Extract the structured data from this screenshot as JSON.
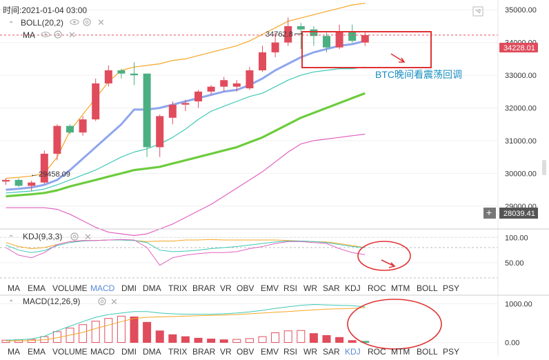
{
  "header": {
    "time_label": "时间:2021-01-04 03:00",
    "boll_label": "BOLL(20,2)",
    "ma_label": "MA",
    "kdj_label": "KDJ(9,3,3)",
    "macd_label": "MACD(12,26,9)"
  },
  "indicator_tabs_kdj": {
    "items": [
      "MA",
      "EMA",
      "VOLUME",
      "MACD",
      "DMI",
      "DMA",
      "TRIX",
      "BRAR",
      "VR",
      "OBV",
      "EMV",
      "RSI",
      "WR",
      "SAR",
      "KDJ",
      "ROC",
      "MTM",
      "BOLL",
      "PSY"
    ],
    "active": "MACD"
  },
  "indicator_tabs_macd": {
    "items": [
      "MA",
      "EMA",
      "VOLUME",
      "MACD",
      "DMI",
      "DMA",
      "TRIX",
      "BRAR",
      "VR",
      "OBV",
      "EMV",
      "RSI",
      "WR",
      "SAR",
      "KDJ",
      "ROC",
      "MTM",
      "BOLL",
      "PSY"
    ],
    "active": "KDJ"
  },
  "annotation": {
    "text": "BTC晚间看震荡回调",
    "high_label": "34762.8",
    "low_label": "29458.09"
  },
  "price_tags": {
    "current": "34228.01",
    "crosshair": "28039.41"
  },
  "colors": {
    "up": "#e04c5c",
    "down": "#4caf82",
    "upper_band": "#f5a623",
    "mid_band": "#8ea6ee",
    "lower_band": "#e060c0",
    "ma_cyan": "#3cc8b4",
    "ma_green": "#6ccc3c",
    "annotation": "#1a8fc0",
    "marker": "#e03030"
  },
  "chart_data": [
    {
      "type": "candlestick",
      "title": "BOLL(20,2)",
      "ylim": [
        28300,
        35300
      ],
      "yticks": [
        29000,
        30000,
        31000,
        32000,
        33000,
        34000,
        35000
      ],
      "ytick_labels": [
        "29000.00",
        "30000.00",
        "31000.00",
        "32000.00",
        "33000.00",
        "34000.00",
        "35000.00"
      ],
      "candles": [
        [
          29750,
          29850,
          29650,
          29800
        ],
        [
          29800,
          29850,
          29580,
          29620
        ],
        [
          29620,
          29780,
          29458,
          29720
        ],
        [
          29720,
          30700,
          29680,
          30600
        ],
        [
          30600,
          31500,
          30400,
          31450
        ],
        [
          31450,
          31500,
          31200,
          31250
        ],
        [
          31250,
          31750,
          31150,
          31650
        ],
        [
          31650,
          32900,
          31600,
          32750
        ],
        [
          32750,
          33300,
          32650,
          33150
        ],
        [
          33150,
          33200,
          32900,
          33050
        ],
        [
          33050,
          33400,
          32700,
          33000
        ],
        [
          33050,
          33050,
          30500,
          30800
        ],
        [
          30800,
          31800,
          30500,
          31750
        ],
        [
          31700,
          32200,
          31500,
          32100
        ],
        [
          32100,
          32250,
          31900,
          32150
        ],
        [
          32200,
          32550,
          32000,
          32500
        ],
        [
          32500,
          32700,
          32400,
          32650
        ],
        [
          32650,
          32950,
          32500,
          32850
        ],
        [
          32650,
          32850,
          32500,
          32750
        ],
        [
          32600,
          33250,
          32550,
          33150
        ],
        [
          33150,
          33900,
          33100,
          33700
        ],
        [
          33700,
          34300,
          33550,
          34000
        ],
        [
          34000,
          34762.8,
          33900,
          34500
        ],
        [
          34500,
          34600,
          33800,
          34400
        ],
        [
          34400,
          34500,
          33900,
          34200
        ],
        [
          34200,
          34300,
          33700,
          33850
        ],
        [
          33850,
          34550,
          33800,
          34350
        ],
        [
          34350,
          34550,
          34000,
          34050
        ],
        [
          34000,
          34350,
          33900,
          34228.01
        ]
      ],
      "series": [
        {
          "role": "upper",
          "values": [
            29850,
            29880,
            29920,
            30000,
            30500,
            31300,
            31800,
            32300,
            32800,
            33150,
            33250,
            33300,
            33350,
            33450,
            33500,
            33600,
            33700,
            33800,
            33900,
            34050,
            34250,
            34450,
            34650,
            34750,
            34850,
            34950,
            35050,
            35150,
            35200
          ]
        },
        {
          "role": "mid",
          "values": [
            29500,
            29530,
            29570,
            29650,
            29800,
            30100,
            30450,
            30800,
            31150,
            31500,
            31950,
            31950,
            32000,
            32100,
            32200,
            32300,
            32400,
            32500,
            32550,
            32700,
            32900,
            33150,
            33350,
            33550,
            33700,
            33800,
            33900,
            33950,
            34050
          ]
        },
        {
          "role": "ma_cyan",
          "values": [
            29400,
            29430,
            29460,
            29520,
            29650,
            29800,
            29950,
            30100,
            30300,
            30500,
            30650,
            30750,
            30900,
            31100,
            31350,
            31650,
            31900,
            32050,
            32200,
            32350,
            32450,
            32650,
            32850,
            33000,
            33100,
            33150,
            33200,
            33200,
            33250
          ]
        },
        {
          "role": "ma_green",
          "values": [
            29300,
            29330,
            29360,
            29400,
            29480,
            29600,
            29700,
            29800,
            29900,
            30000,
            30100,
            30150,
            30200,
            30300,
            30400,
            30500,
            30600,
            30700,
            30800,
            30950,
            31100,
            31300,
            31500,
            31700,
            31850,
            32000,
            32150,
            32300,
            32450
          ]
        },
        {
          "role": "lower",
          "values": [
            28950,
            28950,
            28950,
            28950,
            28900,
            28750,
            28550,
            28350,
            28200,
            28150,
            28100,
            28150,
            28300,
            28450,
            28650,
            28850,
            29050,
            29300,
            29550,
            29800,
            30050,
            30350,
            30650,
            30900,
            31000,
            31050,
            31100,
            31150,
            31200
          ]
        }
      ],
      "guides": [
        {
          "value": 34228.01
        },
        {
          "value": 28039.41
        }
      ]
    },
    {
      "type": "line",
      "title": "KDJ(9,3,3)",
      "ylim": [
        20,
        110
      ],
      "yticks": [
        50,
        100
      ],
      "ytick_labels": [
        "50.00",
        "100.00"
      ],
      "series": [
        {
          "role": "k",
          "values": [
            90,
            82,
            78,
            80,
            86,
            92,
            94,
            94,
            95,
            95,
            94,
            92,
            93,
            93,
            95,
            95,
            96,
            95,
            95,
            95,
            95,
            95,
            94,
            93,
            92,
            91,
            88,
            84,
            80
          ]
        },
        {
          "role": "d",
          "values": [
            85,
            75,
            70,
            74,
            84,
            90,
            93,
            94,
            95,
            95,
            94,
            90,
            75,
            72,
            73,
            75,
            78,
            80,
            82,
            85,
            88,
            91,
            93,
            93,
            92,
            90,
            86,
            82,
            80
          ]
        },
        {
          "role": "j",
          "values": [
            80,
            65,
            60,
            70,
            86,
            92,
            94,
            94,
            95,
            96,
            95,
            80,
            45,
            60,
            65,
            68,
            70,
            70,
            72,
            78,
            82,
            88,
            92,
            92,
            90,
            88,
            78,
            70,
            66
          ]
        }
      ],
      "guides": [
        {
          "value": 80
        },
        {
          "value": 20
        }
      ]
    },
    {
      "type": "bar",
      "title": "MACD(12,26,9)",
      "ylim": [
        -150,
        1150
      ],
      "yticks": [
        0,
        1000
      ],
      "ytick_labels": [
        "0.00",
        "1000.00"
      ],
      "histogram": [
        60,
        70,
        80,
        150,
        280,
        370,
        460,
        550,
        620,
        680,
        660,
        520,
        300,
        200,
        150,
        110,
        90,
        70,
        80,
        100,
        150,
        250,
        300,
        310,
        230,
        180,
        130,
        50,
        30
      ],
      "series": [
        {
          "role": "dif",
          "values": [
            60,
            70,
            90,
            160,
            300,
            420,
            540,
            650,
            720,
            760,
            800,
            800,
            760,
            740,
            730,
            730,
            730,
            740,
            760,
            790,
            830,
            880,
            920,
            960,
            980,
            970,
            960,
            950,
            920
          ]
        },
        {
          "role": "dea",
          "values": [
            40,
            45,
            50,
            70,
            120,
            190,
            260,
            360,
            450,
            540,
            620,
            650,
            660,
            670,
            680,
            690,
            700,
            710,
            720,
            740,
            760,
            780,
            800,
            820,
            840,
            860,
            870,
            880,
            900
          ]
        }
      ]
    }
  ]
}
